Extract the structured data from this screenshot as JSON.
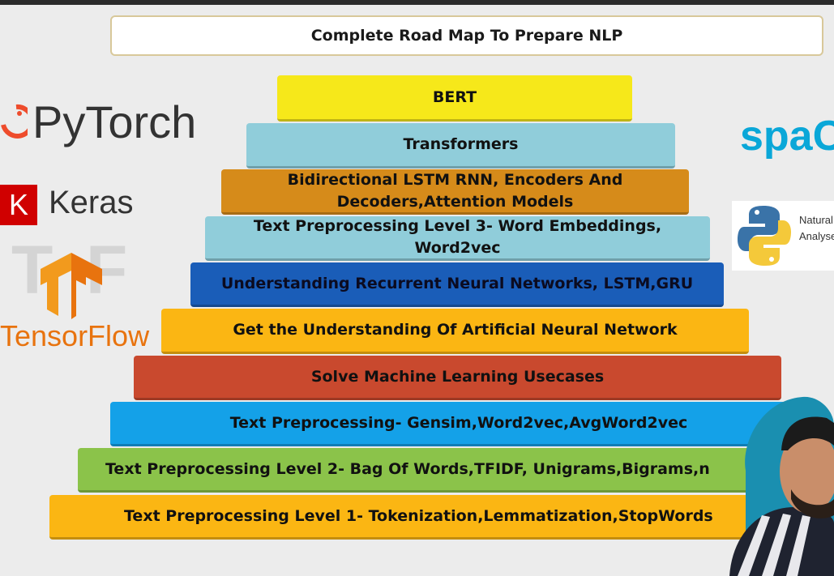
{
  "title": "Complete Road Map To Prepare NLP",
  "steps": [
    {
      "line1": "BERT",
      "line2": "",
      "color": "#f6e81a"
    },
    {
      "line1": "Transformers",
      "line2": "",
      "color": "#90cdda"
    },
    {
      "line1": "Bidirectional LSTM RNN, Encoders And",
      "line2": "Decoders,Attention Models",
      "color": "#d68b1a"
    },
    {
      "line1": "Text Preprocessing Level 3- Word Embeddings,",
      "line2": "Word2vec",
      "color": "#90cdda"
    },
    {
      "line1": "Understanding Recurrent Neural Networks, LSTM,GRU",
      "line2": "",
      "color": "#1a5db8"
    },
    {
      "line1": "Get the Understanding Of Artificial Neural Network",
      "line2": "",
      "color": "#fbb613"
    },
    {
      "line1": "Solve Machine Learning Usecases",
      "line2": "",
      "color": "#c9492e"
    },
    {
      "line1": "Text Preprocessing- Gensim,Word2vec,AvgWord2vec",
      "line2": "",
      "color": "#14a1e8"
    },
    {
      "line1": "Text Preprocessing Level 2- Bag Of Words,TFIDF, Unigrams,Bigrams,n",
      "line2": "",
      "color": "#8bc34a"
    },
    {
      "line1": "Text Preprocessing Level 1- Tokenization,Lemmatization,StopWords",
      "line2": "",
      "color": "#fbb613"
    }
  ],
  "logos": {
    "pytorch": "PyTorch",
    "keras_letter": "K",
    "keras": "Keras",
    "tensorflow": "TensorFlow",
    "spacy": "spaC",
    "nltk_line1": "Natural",
    "nltk_line2": "Analyse"
  }
}
